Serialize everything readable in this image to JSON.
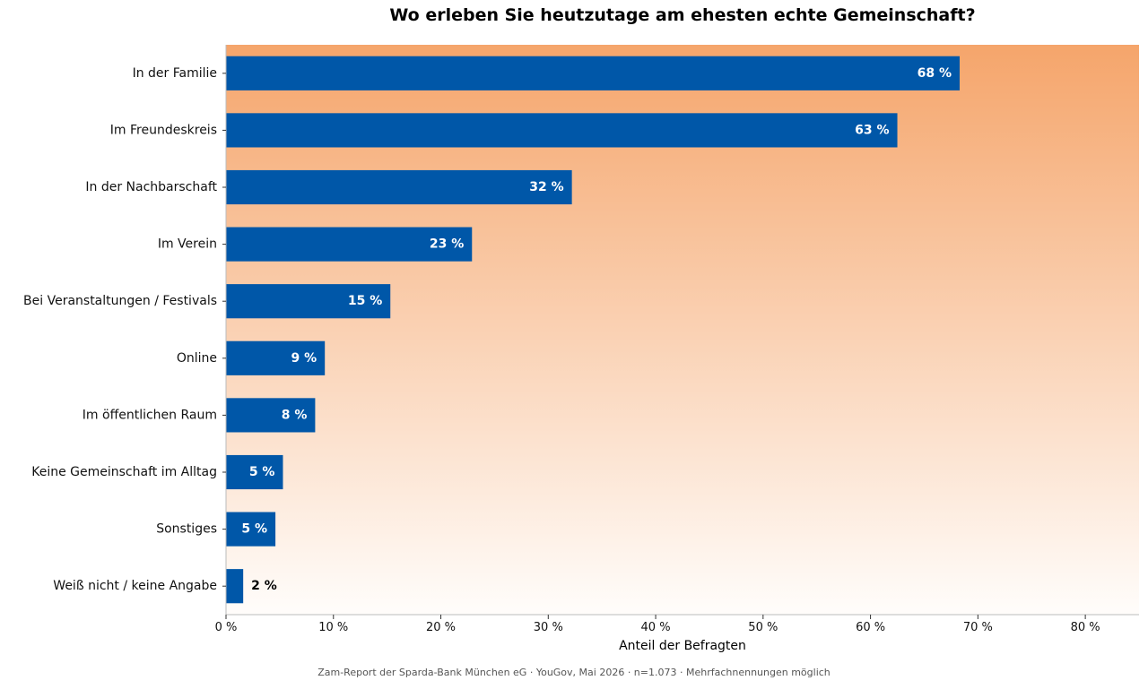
{
  "chart_data": {
    "type": "bar",
    "orientation": "horizontal",
    "title": "Wo erleben Sie heutzutage am ehesten echte Gemeinschaft?",
    "xlabel": "Anteil der Befragten",
    "ylabel": "",
    "xlim": [
      0,
      85
    ],
    "x_ticks": [
      0,
      10,
      20,
      30,
      40,
      50,
      60,
      70,
      80
    ],
    "x_tick_labels": [
      "0 %",
      "10 %",
      "20 %",
      "30 %",
      "40 %",
      "50 %",
      "60 %",
      "70 %",
      "80 %"
    ],
    "categories": [
      "In der Familie",
      "Im Freundeskreis",
      "In der Nachbarschaft",
      "Im Verein",
      "Bei Veranstaltungen / Festivals",
      "Online",
      "Im öffentlichen Raum",
      "Keine Gemeinschaft im Alltag",
      "Sonstiges",
      "Weiß nicht / keine Angabe"
    ],
    "values": [
      68.3,
      62.5,
      32.2,
      22.9,
      15.3,
      9.2,
      8.3,
      5.3,
      4.6,
      1.6
    ],
    "value_labels": [
      "68 %",
      "63 %",
      "32 %",
      "23 %",
      "15 %",
      "9 %",
      "8 %",
      "5 %",
      "5 %",
      "2 %"
    ],
    "grid": false,
    "colors": {
      "bar": "#0057a8",
      "label_inside": "#ffffff",
      "label_outside": "#000000",
      "background_top": "#f5a56b",
      "background_bottom": "#fffdfb"
    }
  },
  "footnote": "Zam-Report der Sparda-Bank München eG · YouGov, Mai 2026 · n=1.073 · Mehrfachnennungen möglich"
}
